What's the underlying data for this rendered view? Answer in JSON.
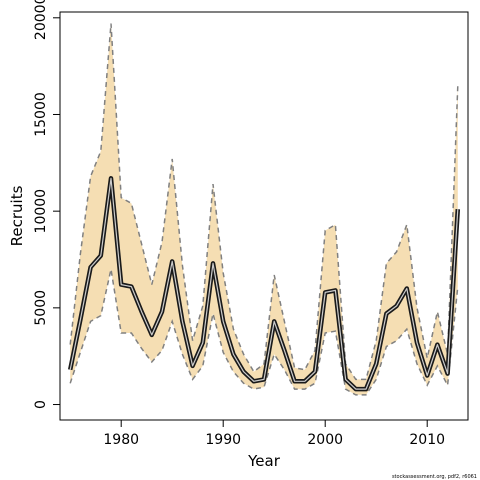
{
  "chart_data": {
    "type": "area",
    "title": "",
    "xlabel": "Year",
    "ylabel": "Recruits",
    "xlim": [
      1974,
      2014
    ],
    "ylim": [
      -800,
      20300
    ],
    "x_ticks": [
      1980,
      1990,
      2000,
      2010
    ],
    "y_ticks": [
      0,
      5000,
      10000,
      15000,
      20000
    ],
    "grid": false,
    "legend": "none",
    "source_note": "stockassessment.org, pdf2, r6061",
    "colors": {
      "band": "#f5deb3",
      "bounds": "#808080",
      "estimate": "#404040",
      "axis": "#000000"
    },
    "x": [
      1975,
      1976,
      1977,
      1978,
      1979,
      1980,
      1981,
      1982,
      1983,
      1984,
      1985,
      1986,
      1987,
      1988,
      1989,
      1990,
      1991,
      1992,
      1993,
      1994,
      1995,
      1996,
      1997,
      1998,
      1999,
      2000,
      2001,
      2002,
      2003,
      2004,
      2005,
      2006,
      2007,
      2008,
      2009,
      2010,
      2011,
      2012,
      2013
    ],
    "series": [
      {
        "role": "estimate",
        "values": [
          1800,
          4400,
          7100,
          7700,
          11700,
          6200,
          6100,
          4800,
          3600,
          4800,
          7400,
          4300,
          2000,
          3200,
          7300,
          4300,
          2600,
          1700,
          1200,
          1300,
          4300,
          2800,
          1200,
          1200,
          1700,
          5800,
          5900,
          1300,
          800,
          800,
          2100,
          4700,
          5100,
          6000,
          3200,
          1500,
          3100,
          1600,
          10100
        ]
      },
      {
        "role": "upper",
        "values": [
          3100,
          7800,
          11800,
          13100,
          19700,
          10700,
          10400,
          8300,
          6200,
          8400,
          12700,
          7200,
          3300,
          5100,
          11400,
          6800,
          3900,
          2600,
          1700,
          2100,
          6700,
          4300,
          1900,
          1800,
          2800,
          9000,
          9300,
          2100,
          1300,
          1300,
          3300,
          7300,
          7900,
          9300,
          5000,
          2400,
          4800,
          2600,
          16500
        ]
      },
      {
        "role": "lower",
        "values": [
          1100,
          2700,
          4300,
          4600,
          7000,
          3700,
          3700,
          2900,
          2200,
          2800,
          4300,
          2600,
          1300,
          2000,
          4700,
          2700,
          1700,
          1100,
          800,
          900,
          2600,
          1800,
          800,
          800,
          1100,
          3700,
          3800,
          800,
          500,
          500,
          1300,
          3000,
          3300,
          3900,
          2100,
          1000,
          2000,
          1000,
          6100
        ]
      }
    ]
  }
}
